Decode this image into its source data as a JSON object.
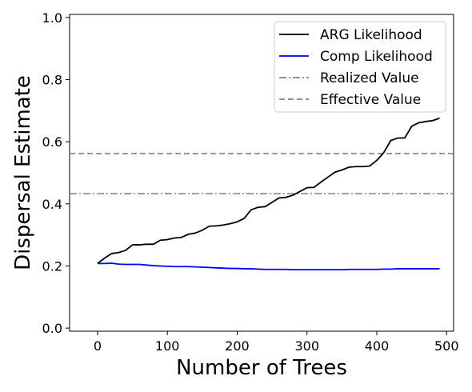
{
  "chart_data": {
    "type": "line",
    "title": "",
    "xlabel": "Number of Trees",
    "ylabel": "Dispersal Estimate",
    "xlim": [
      -40,
      510
    ],
    "ylim": [
      -0.01,
      1.01
    ],
    "xticks": [
      0,
      100,
      200,
      300,
      400,
      500
    ],
    "yticks": [
      0.0,
      0.2,
      0.4,
      0.6,
      0.8,
      1.0
    ],
    "xtick_labels": [
      "0",
      "100",
      "200",
      "300",
      "400",
      "500"
    ],
    "ytick_labels": [
      "0.0",
      "0.2",
      "0.4",
      "0.6",
      "0.8",
      "1.0"
    ],
    "grid": false,
    "legend_position": "top-right",
    "x": [
      0,
      10,
      20,
      30,
      40,
      50,
      60,
      70,
      80,
      90,
      100,
      110,
      120,
      130,
      140,
      150,
      160,
      170,
      180,
      190,
      200,
      210,
      220,
      230,
      240,
      250,
      260,
      270,
      280,
      290,
      300,
      310,
      320,
      330,
      340,
      350,
      360,
      370,
      380,
      390,
      400,
      410,
      420,
      430,
      440,
      450,
      460,
      470,
      480,
      490
    ],
    "series": [
      {
        "name": "ARG Likelihood",
        "color": "#000000",
        "style": "solid",
        "values": [
          0.208,
          0.225,
          0.24,
          0.243,
          0.25,
          0.268,
          0.268,
          0.27,
          0.27,
          0.283,
          0.285,
          0.29,
          0.292,
          0.302,
          0.306,
          0.315,
          0.328,
          0.329,
          0.332,
          0.336,
          0.342,
          0.353,
          0.381,
          0.389,
          0.391,
          0.405,
          0.419,
          0.421,
          0.428,
          0.44,
          0.452,
          0.453,
          0.47,
          0.486,
          0.502,
          0.509,
          0.518,
          0.52,
          0.52,
          0.522,
          0.54,
          0.565,
          0.604,
          0.612,
          0.612,
          0.65,
          0.661,
          0.665,
          0.668,
          0.676
        ]
      },
      {
        "name": "Comp Likelihood",
        "color": "#0000ff",
        "style": "solid",
        "values": [
          0.208,
          0.208,
          0.209,
          0.206,
          0.205,
          0.205,
          0.205,
          0.203,
          0.201,
          0.2,
          0.199,
          0.198,
          0.198,
          0.198,
          0.197,
          0.196,
          0.195,
          0.194,
          0.193,
          0.192,
          0.192,
          0.191,
          0.191,
          0.19,
          0.189,
          0.189,
          0.189,
          0.189,
          0.188,
          0.188,
          0.188,
          0.188,
          0.188,
          0.188,
          0.188,
          0.188,
          0.189,
          0.189,
          0.189,
          0.189,
          0.189,
          0.19,
          0.19,
          0.191,
          0.191,
          0.191,
          0.191,
          0.191,
          0.191,
          0.191
        ]
      }
    ],
    "reference_lines": [
      {
        "name": "Realized Value",
        "value": 0.433,
        "color": "#808080",
        "style": "dashdot"
      },
      {
        "name": "Effective Value",
        "value": 0.562,
        "color": "#808080",
        "style": "dashed"
      }
    ]
  }
}
